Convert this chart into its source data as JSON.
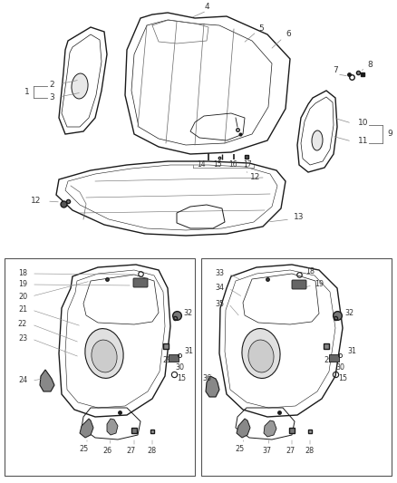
{
  "bg_color": "#ffffff",
  "fig_width": 4.38,
  "fig_height": 5.33,
  "line_color": "#2a2a2a",
  "gray_line": "#555555",
  "leader_color": "#888888",
  "label_color": "#333333"
}
